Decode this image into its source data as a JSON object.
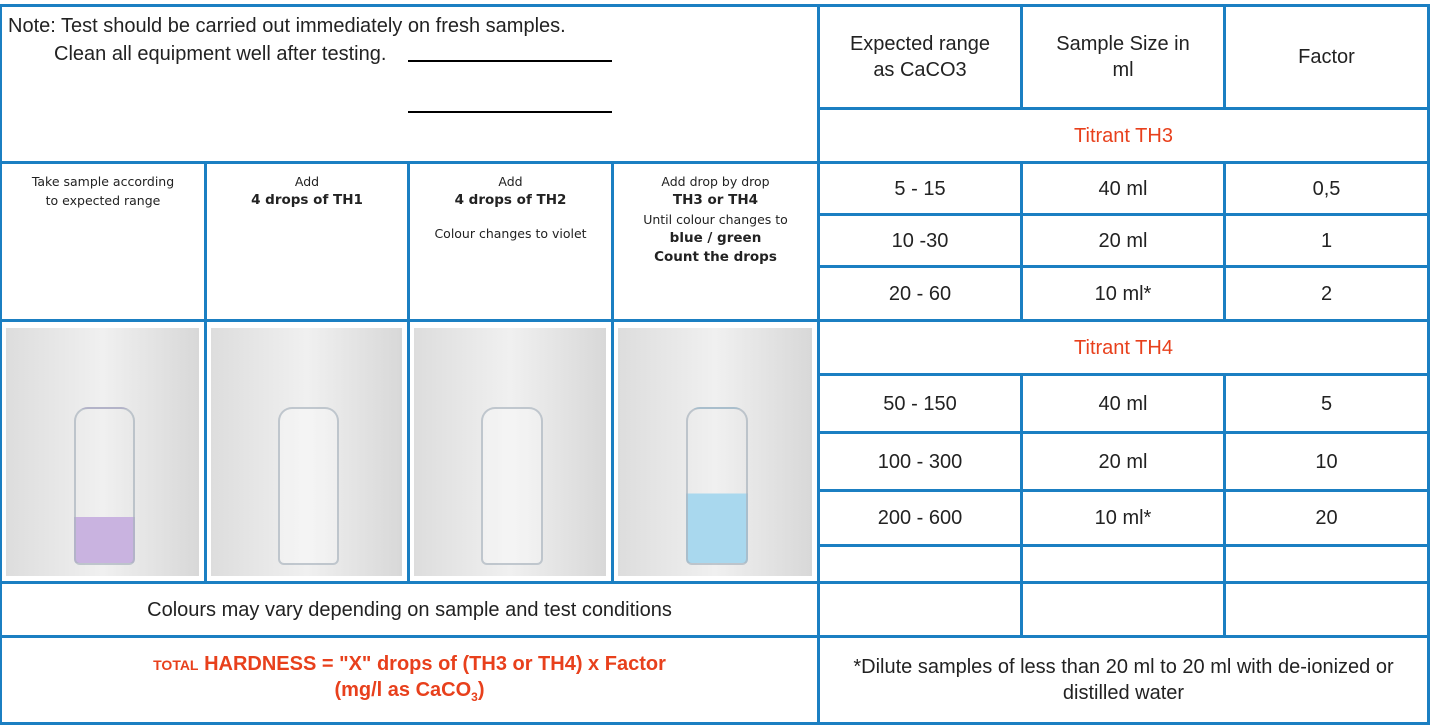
{
  "note": {
    "lines": [
      "Note: Test should be carried out immediately on fresh samples.",
      "Clean all equipment well after testing."
    ]
  },
  "steps": [
    {
      "lines": [
        {
          "text": "Take sample according",
          "bold": false
        },
        {
          "text": "to expected range",
          "bold": false
        }
      ]
    },
    {
      "lines": [
        {
          "text": "Add",
          "bold": false
        },
        {
          "text": "4 drops of TH1",
          "bold": true
        }
      ]
    },
    {
      "lines": [
        {
          "text": "Add",
          "bold": false
        },
        {
          "text": "4 drops of TH2",
          "bold": true
        },
        {
          "text": "Colour changes to violet",
          "bold": false
        }
      ]
    },
    {
      "lines": [
        {
          "text": "Add drop by drop",
          "bold": false
        },
        {
          "text": "TH3 or TH4",
          "bold": true
        },
        {
          "text": "Until colour changes to",
          "bold": false
        },
        {
          "text": "blue / green",
          "bold": true
        },
        {
          "text": "Count the drops",
          "bold": true
        }
      ]
    }
  ],
  "remark": "Colours may vary depending on sample and test conditions",
  "formula": {
    "lead": "TOTAL",
    "rest": "HARDNESS = \"X\" drops of (TH3 or TH4) x Factor",
    "unit": "(mg/l as CaCO",
    "sub": "3",
    "close": ")"
  },
  "table": {
    "headers": [
      "Expected range as CaCO3",
      "Sample Size in ml",
      "Factor"
    ],
    "groups": [
      {
        "title": "Titrant TH3",
        "rows": [
          [
            "5 - 15",
            "40 ml",
            "0,5"
          ],
          [
            "10 -30",
            "20 ml",
            "1"
          ],
          [
            "20 - 60",
            "10 ml*",
            "2"
          ]
        ]
      },
      {
        "title": "Titrant TH4",
        "rows": [
          [
            "50 - 150",
            "40 ml",
            "5"
          ],
          [
            "100 - 300",
            "20 ml",
            "10"
          ],
          [
            "200 - 600",
            "10 ml*",
            "20"
          ]
        ]
      }
    ],
    "footnote": "*Dilute samples of less than 20 ml to 20 ml with de-ionized or distilled water"
  }
}
